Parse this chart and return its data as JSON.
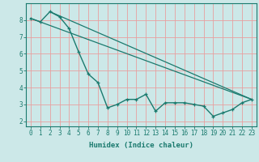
{
  "xlabel": "Humidex (Indice chaleur)",
  "ylabel": "",
  "xlim": [
    -0.5,
    23.5
  ],
  "ylim": [
    1.7,
    9.0
  ],
  "yticks": [
    2,
    3,
    4,
    5,
    6,
    7,
    8
  ],
  "xticks": [
    0,
    1,
    2,
    3,
    4,
    5,
    6,
    7,
    8,
    9,
    10,
    11,
    12,
    13,
    14,
    15,
    16,
    17,
    18,
    19,
    20,
    21,
    22,
    23
  ],
  "line_color": "#1a7a6e",
  "bg_color": "#cce8e8",
  "grid_color": "#e8a0a0",
  "series": [
    {
      "x": [
        0,
        1,
        2,
        3,
        4,
        5,
        6,
        7,
        8,
        9,
        10,
        11,
        12,
        13,
        14,
        15,
        16,
        17,
        18,
        19,
        20,
        21,
        22,
        23
      ],
      "y": [
        8.1,
        7.9,
        8.5,
        8.2,
        7.5,
        6.1,
        4.8,
        4.3,
        2.8,
        3.0,
        3.3,
        3.3,
        3.6,
        2.6,
        3.1,
        3.1,
        3.1,
        3.0,
        2.9,
        2.3,
        2.5,
        2.7,
        3.1,
        3.3
      ],
      "marker": true,
      "linewidth": 1.0
    },
    {
      "x": [
        0,
        23
      ],
      "y": [
        8.1,
        3.3
      ],
      "marker": false,
      "linewidth": 0.9
    },
    {
      "x": [
        2,
        23
      ],
      "y": [
        8.5,
        3.3
      ],
      "marker": false,
      "linewidth": 0.9
    }
  ]
}
